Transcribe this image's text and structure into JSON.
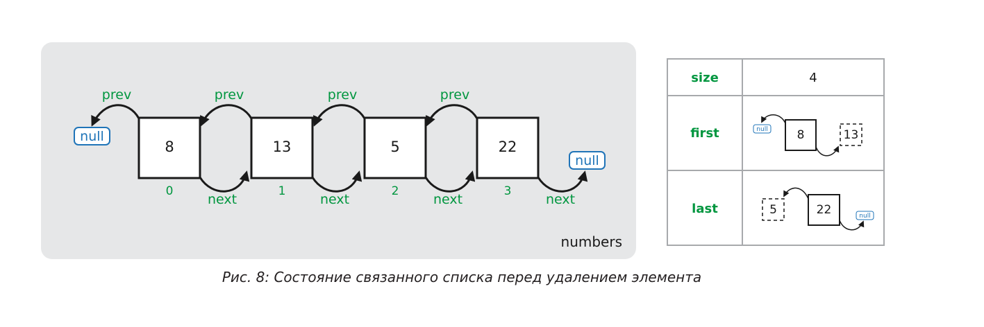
{
  "diagram": {
    "container_label": "numbers",
    "prev_label": "prev",
    "next_label": "next",
    "null_label": "null",
    "nodes": [
      {
        "value": "8",
        "index": "0"
      },
      {
        "value": "13",
        "index": "1"
      },
      {
        "value": "5",
        "index": "2"
      },
      {
        "value": "22",
        "index": "3"
      }
    ]
  },
  "table": {
    "rows": [
      {
        "key": "size",
        "value": "4"
      },
      {
        "key": "first",
        "current": "8",
        "next": "13",
        "null": "null"
      },
      {
        "key": "last",
        "prev": "5",
        "current": "22",
        "null": "null"
      }
    ]
  },
  "caption": "Рис. 8: Состояние связанного списка перед удалением элемента",
  "colors": {
    "label_green": "#00963f",
    "null_blue": "#1f74b8",
    "panel_bg": "#e6e7e8"
  }
}
